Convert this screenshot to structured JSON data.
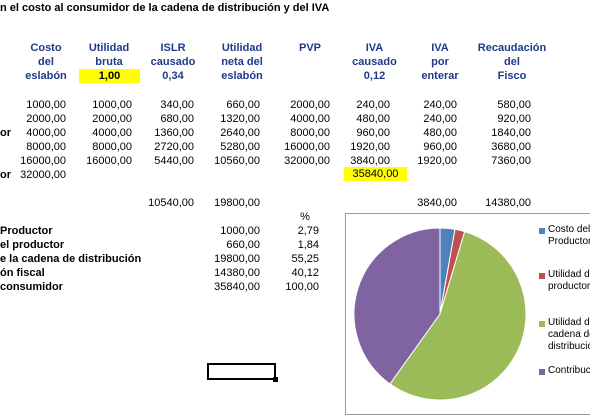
{
  "title": "n el costo al consumidor de la cadena de distribución y del IVA",
  "headers": {
    "costo": [
      "Costo",
      "del",
      "eslabón"
    ],
    "utilidad_bruta": [
      "Utilidad",
      "bruta"
    ],
    "utilidad_bruta_value": "1,00",
    "islr": [
      "ISLR",
      "causado"
    ],
    "islr_value": "0,34",
    "utilidad_neta": [
      "Utilidad",
      "neta del",
      "eslabón"
    ],
    "pvp": [
      "PVP"
    ],
    "iva_causado": [
      "IVA",
      "causado"
    ],
    "iva_causado_value": "0,12",
    "iva_enterar": [
      "IVA",
      "por",
      "enterar"
    ],
    "recaudacion": [
      "Recaudación",
      "del",
      "Fisco"
    ]
  },
  "rows": [
    {
      "label": "",
      "cells": [
        "1000,00",
        "1000,00",
        "340,00",
        "660,00",
        "2000,00",
        "240,00",
        "240,00",
        "580,00"
      ]
    },
    {
      "label": "",
      "cells": [
        "2000,00",
        "2000,00",
        "680,00",
        "1320,00",
        "4000,00",
        "480,00",
        "240,00",
        "920,00"
      ]
    },
    {
      "label": "or",
      "cells": [
        "4000,00",
        "4000,00",
        "1360,00",
        "2640,00",
        "8000,00",
        "960,00",
        "480,00",
        "1840,00"
      ]
    },
    {
      "label": "",
      "cells": [
        "8000,00",
        "8000,00",
        "2720,00",
        "5280,00",
        "16000,00",
        "1920,00",
        "960,00",
        "3680,00"
      ]
    },
    {
      "label": "",
      "cells": [
        "16000,00",
        "16000,00",
        "5440,00",
        "10560,00",
        "32000,00",
        "3840,00",
        "1920,00",
        "7360,00"
      ]
    }
  ],
  "consumer_row": {
    "label": "or",
    "costo": "32000,00",
    "iva_total": "35840,00"
  },
  "totals": {
    "islr": "10540,00",
    "utilidad_neta": "19800,00",
    "iva_causado": "3840,00",
    "recaudacion": "14380,00"
  },
  "summary": {
    "pct_header": "%",
    "items": [
      {
        "label": "Productor",
        "value": "1000,00",
        "pct": "2,79"
      },
      {
        "label": "el productor",
        "value": "660,00",
        "pct": "1,84"
      },
      {
        "label": "e la cadena de distribución",
        "value": "19800,00",
        "pct": "55,25"
      },
      {
        "label": "ón fiscal",
        "value": "14380,00",
        "pct": "40,12"
      },
      {
        "label": "consumidor",
        "value": "35840,00",
        "pct": "100,00"
      }
    ]
  },
  "colors": {
    "slice_1": "#4f81bd",
    "slice_2": "#c0504d",
    "slice_3": "#9bbb59",
    "slice_4": "#8064a2",
    "highlight": "#ffff00",
    "header_text": "#1f3a8a"
  },
  "chart_data": {
    "type": "pie",
    "values": [
      2.79,
      1.84,
      55.25,
      40.12
    ],
    "legend": [
      [
        "Costo del",
        "Productor"
      ],
      [
        "Utilidad d",
        "productor"
      ],
      [
        "Utilidad d",
        "cadena de",
        "distribució"
      ],
      [
        "Contribuc"
      ]
    ],
    "legend_position": "right"
  }
}
